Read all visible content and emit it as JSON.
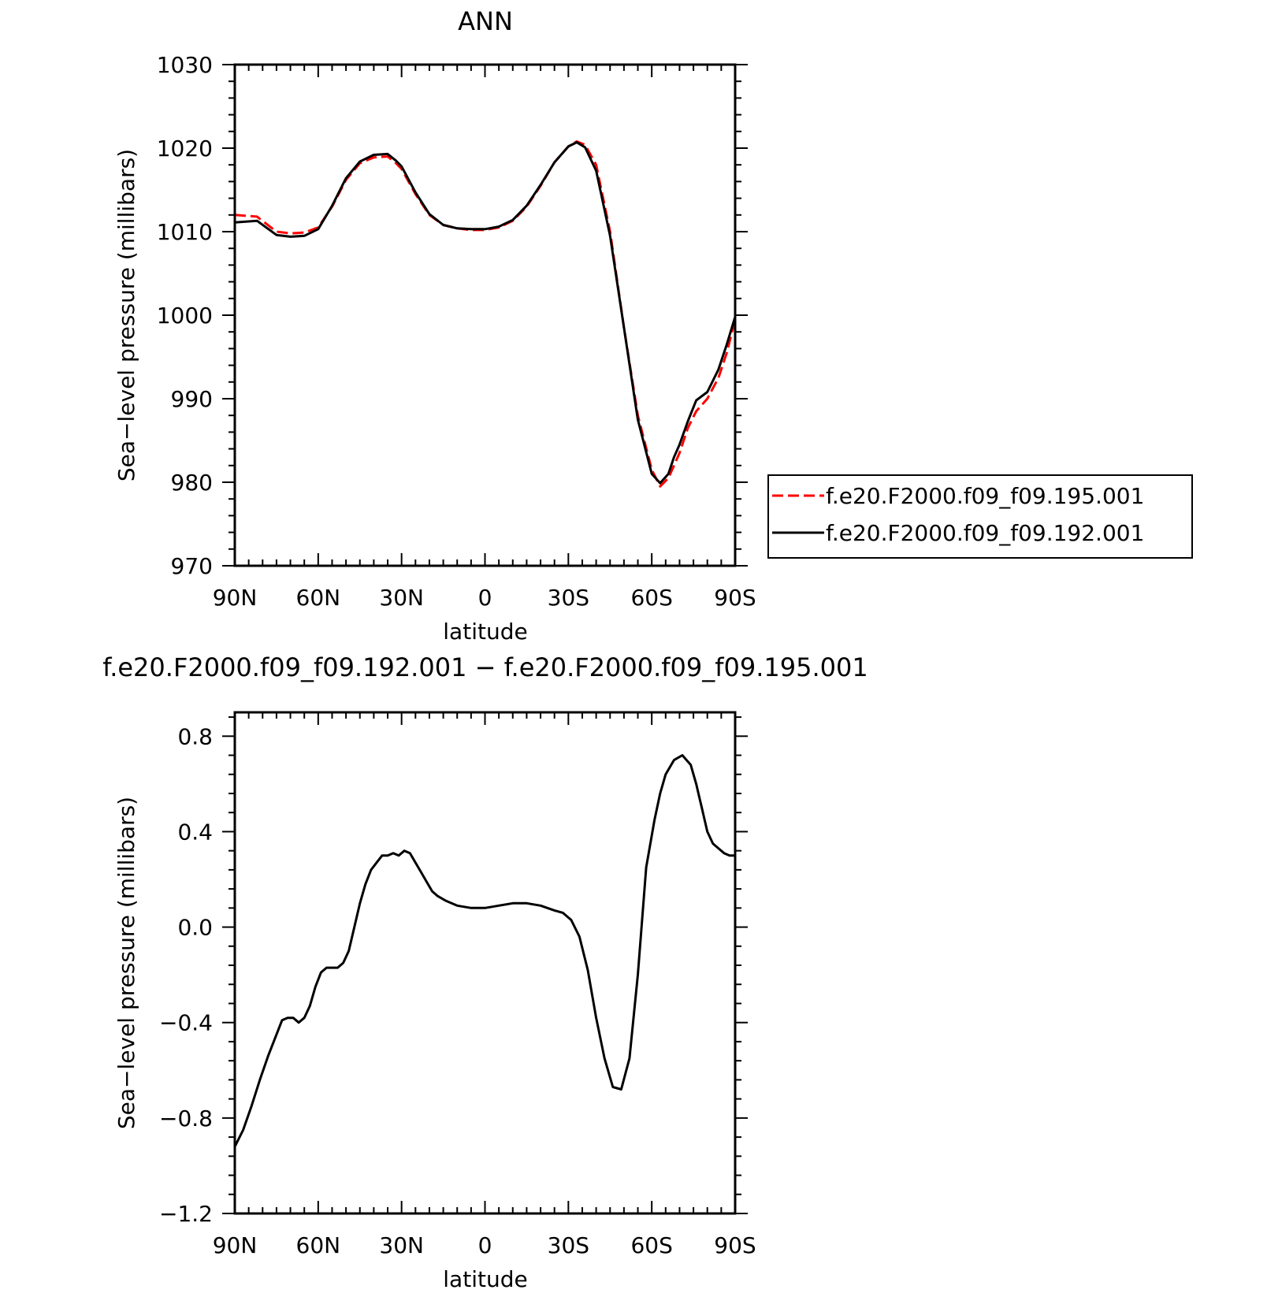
{
  "chart_data": [
    {
      "type": "line",
      "title": "ANN",
      "xlabel": "latitude",
      "ylabel": "Sea−level pressure (millibars)",
      "xlim": [
        90,
        -90
      ],
      "ylim": [
        970,
        1030
      ],
      "xticks": [
        90,
        60,
        30,
        0,
        -30,
        -60,
        -90
      ],
      "xtick_labels": [
        "90N",
        "60N",
        "30N",
        "0",
        "30S",
        "60S",
        "90S"
      ],
      "yticks": [
        970,
        980,
        990,
        1000,
        1010,
        1020,
        1030
      ],
      "ytick_labels": [
        "970",
        "980",
        "990",
        "1000",
        "1010",
        "1020",
        "1030"
      ],
      "legend_position": "outside-right",
      "series": [
        {
          "name": "f.e20.F2000.f09_f09.195.001",
          "color": "#ff0000",
          "dash": "dashed",
          "x": [
            90,
            82,
            75,
            70,
            65,
            60,
            55,
            50,
            45,
            40,
            35,
            32,
            30,
            25,
            20,
            15,
            10,
            5,
            0,
            -5,
            -10,
            -15,
            -20,
            -25,
            -30,
            -33,
            -36,
            -40,
            -45,
            -50,
            -55,
            -60,
            -63,
            -66,
            -68,
            -70,
            -73,
            -76,
            -80,
            -84,
            -87,
            -90
          ],
          "y": [
            1012.0,
            1011.8,
            1010.0,
            1009.8,
            1009.9,
            1010.5,
            1013.0,
            1016.2,
            1018.2,
            1018.9,
            1019.0,
            1018.2,
            1017.5,
            1014.5,
            1012.0,
            1010.8,
            1010.4,
            1010.2,
            1010.2,
            1010.5,
            1011.3,
            1013.0,
            1015.5,
            1018.3,
            1020.2,
            1020.8,
            1020.4,
            1018.0,
            1010.0,
            998.5,
            988.0,
            981.5,
            979.5,
            980.5,
            982.0,
            983.5,
            986.5,
            988.5,
            990.0,
            992.5,
            995.5,
            999.5
          ]
        },
        {
          "name": "f.e20.F2000.f09_f09.192.001",
          "color": "#000000",
          "dash": "solid",
          "x": [
            90,
            82,
            75,
            70,
            65,
            60,
            55,
            50,
            45,
            40,
            35,
            32,
            30,
            25,
            20,
            15,
            10,
            5,
            0,
            -5,
            -10,
            -15,
            -20,
            -25,
            -30,
            -33,
            -36,
            -40,
            -45,
            -50,
            -55,
            -60,
            -63,
            -66,
            -68,
            -70,
            -73,
            -76,
            -80,
            -84,
            -87,
            -90
          ],
          "y": [
            1011.1,
            1011.3,
            1009.6,
            1009.4,
            1009.5,
            1010.3,
            1013.1,
            1016.4,
            1018.4,
            1019.2,
            1019.3,
            1018.5,
            1017.8,
            1014.7,
            1012.1,
            1010.8,
            1010.4,
            1010.3,
            1010.3,
            1010.6,
            1011.4,
            1013.1,
            1015.6,
            1018.3,
            1020.2,
            1020.7,
            1020.1,
            1017.3,
            1009.5,
            998.5,
            987.5,
            981.0,
            979.9,
            981.0,
            983.0,
            984.5,
            987.3,
            989.8,
            990.8,
            993.5,
            996.5,
            999.8
          ]
        }
      ]
    },
    {
      "type": "line",
      "title": "f.e20.F2000.f09_f09.192.001 − f.e20.F2000.f09_f09.195.001",
      "xlabel": "latitude",
      "ylabel": "Sea−level pressure (millibars)",
      "xlim": [
        90,
        -90
      ],
      "ylim": [
        -1.2,
        0.9
      ],
      "xticks": [
        90,
        60,
        30,
        0,
        -30,
        -60,
        -90
      ],
      "xtick_labels": [
        "90N",
        "60N",
        "30N",
        "0",
        "30S",
        "60S",
        "90S"
      ],
      "yticks": [
        -1.2,
        -0.8,
        -0.4,
        0.0,
        0.4,
        0.8
      ],
      "ytick_labels": [
        "−1.2",
        "−0.8",
        "−0.4",
        "0.0",
        "0.4",
        "0.8"
      ],
      "series": [
        {
          "color": "#000000",
          "dash": "solid",
          "x": [
            90,
            87,
            84,
            81,
            78,
            75,
            73,
            71,
            69,
            67,
            65,
            63,
            61,
            59,
            57,
            55,
            53,
            51,
            49,
            47,
            45,
            43,
            41,
            39,
            37,
            35,
            33,
            31,
            29,
            27,
            25,
            23,
            21,
            19,
            17,
            14,
            10,
            5,
            0,
            -5,
            -10,
            -15,
            -20,
            -25,
            -28,
            -31,
            -34,
            -37,
            -40,
            -43,
            -46,
            -49,
            -52,
            -55,
            -58,
            -61,
            -63,
            -65,
            -68,
            -71,
            -74,
            -76,
            -77,
            -78,
            -79,
            -80,
            -82,
            -84,
            -86,
            -88,
            -90
          ],
          "y": [
            -0.92,
            -0.85,
            -0.75,
            -0.64,
            -0.54,
            -0.45,
            -0.39,
            -0.38,
            -0.38,
            -0.4,
            -0.38,
            -0.33,
            -0.25,
            -0.19,
            -0.17,
            -0.17,
            -0.17,
            -0.15,
            -0.1,
            0.0,
            0.1,
            0.18,
            0.24,
            0.27,
            0.3,
            0.3,
            0.31,
            0.3,
            0.32,
            0.31,
            0.27,
            0.23,
            0.19,
            0.15,
            0.13,
            0.11,
            0.09,
            0.08,
            0.08,
            0.09,
            0.1,
            0.1,
            0.09,
            0.07,
            0.06,
            0.03,
            -0.04,
            -0.18,
            -0.38,
            -0.55,
            -0.67,
            -0.68,
            -0.55,
            -0.2,
            0.25,
            0.45,
            0.56,
            0.64,
            0.7,
            0.72,
            0.68,
            0.6,
            0.55,
            0.5,
            0.45,
            0.4,
            0.35,
            0.33,
            0.31,
            0.3,
            0.3
          ]
        }
      ]
    }
  ]
}
